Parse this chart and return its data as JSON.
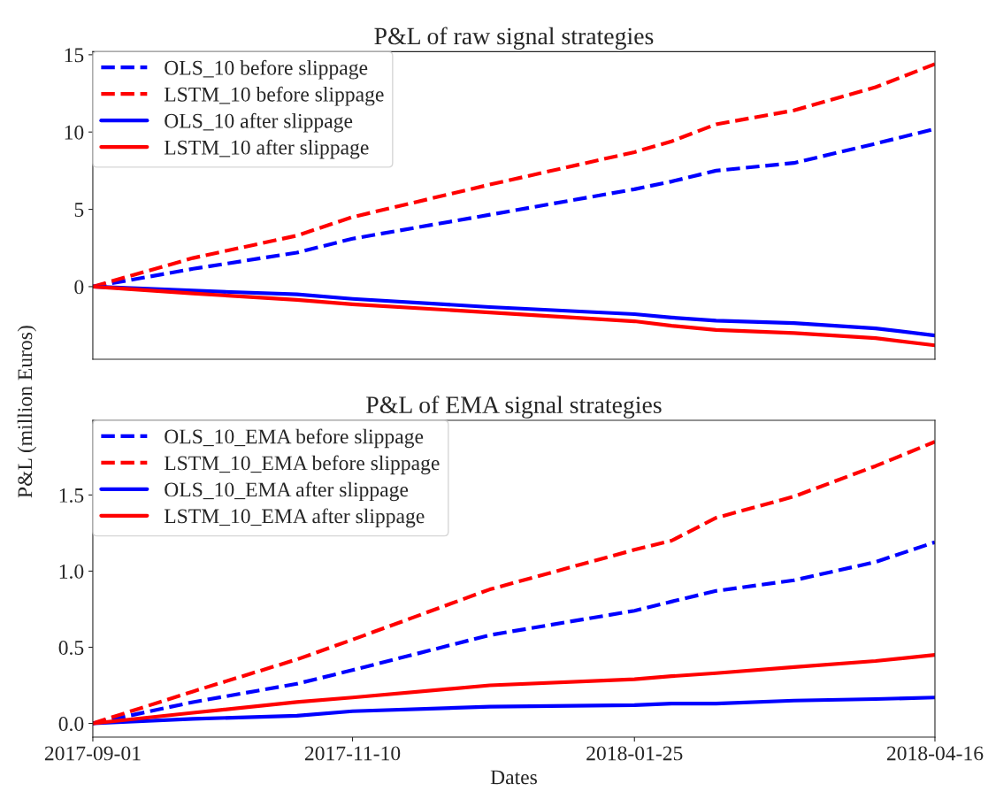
{
  "chart_data": [
    {
      "type": "line",
      "title": "P&L of raw signal strategies",
      "ylabel": "P&L (million Euros)",
      "x": [
        "2017-09-01",
        "2017-09-28",
        "2017-10-26",
        "2017-11-10",
        "2017-12-17",
        "2018-01-25",
        "2018-02-04",
        "2018-02-16",
        "2018-03-09",
        "2018-03-31",
        "2018-04-16"
      ],
      "xlim": [
        "2017-09-01",
        "2018-04-16"
      ],
      "ylim": [
        -4.7,
        15.2
      ],
      "yticks": [
        0,
        5,
        10,
        15
      ],
      "tick_labels": "y",
      "legend": "top left",
      "grid": false,
      "series": [
        {
          "name": "OLS_10 before slippage",
          "color": "#0000ff",
          "line_style": "dashed",
          "values": [
            0,
            1.15,
            2.2,
            3.1,
            4.65,
            6.3,
            6.8,
            7.5,
            8.0,
            9.25,
            10.2
          ]
        },
        {
          "name": "LSTM_10 before slippage",
          "color": "#ff0000",
          "line_style": "dashed",
          "values": [
            0,
            1.85,
            3.3,
            4.5,
            6.6,
            8.7,
            9.4,
            10.5,
            11.4,
            12.9,
            14.4
          ]
        },
        {
          "name": "OLS_10 after slippage",
          "color": "#0000ff",
          "line_style": "solid",
          "values": [
            0,
            -0.26,
            -0.5,
            -0.79,
            -1.32,
            -1.78,
            -2.0,
            -2.2,
            -2.36,
            -2.7,
            -3.16
          ]
        },
        {
          "name": "LSTM_10 after slippage",
          "color": "#ff0000",
          "line_style": "solid",
          "values": [
            0,
            -0.44,
            -0.86,
            -1.14,
            -1.67,
            -2.24,
            -2.53,
            -2.8,
            -3.0,
            -3.33,
            -3.8
          ]
        }
      ]
    },
    {
      "type": "line",
      "title": "P&L of EMA signal strategies",
      "xlabel": "Dates",
      "x": [
        "2017-09-01",
        "2017-09-28",
        "2017-10-26",
        "2017-11-10",
        "2017-12-17",
        "2018-01-25",
        "2018-02-04",
        "2018-02-16",
        "2018-03-09",
        "2018-03-31",
        "2018-04-16"
      ],
      "xlim": [
        "2017-09-01",
        "2018-04-16"
      ],
      "xticks": [
        "2017-09-01",
        "2017-11-10",
        "2018-01-25",
        "2018-04-16"
      ],
      "ylim": [
        -0.09,
        1.99
      ],
      "yticks": [
        {
          "value": 0,
          "label": "0.0"
        },
        0.5,
        {
          "value": 1,
          "label": "1.0"
        },
        1.5
      ],
      "legend": "top left",
      "grid": false,
      "series": [
        {
          "name": "OLS_10_EMA before slippage",
          "color": "#0000ff",
          "line_style": "dashed",
          "values": [
            0,
            0.14,
            0.26,
            0.35,
            0.58,
            0.74,
            0.8,
            0.87,
            0.94,
            1.06,
            1.19
          ]
        },
        {
          "name": "LSTM_10_EMA before slippage",
          "color": "#ff0000",
          "line_style": "dashed",
          "values": [
            0,
            0.21,
            0.42,
            0.55,
            0.88,
            1.14,
            1.2,
            1.35,
            1.49,
            1.69,
            1.85
          ]
        },
        {
          "name": "OLS_10_EMA after slippage",
          "color": "#0000ff",
          "line_style": "solid",
          "values": [
            0,
            0.03,
            0.05,
            0.08,
            0.11,
            0.12,
            0.13,
            0.13,
            0.15,
            0.16,
            0.17
          ]
        },
        {
          "name": "LSTM_10_EMA after slippage",
          "color": "#ff0000",
          "line_style": "solid",
          "values": [
            0,
            0.07,
            0.14,
            0.17,
            0.25,
            0.29,
            0.31,
            0.33,
            0.37,
            0.41,
            0.45
          ]
        }
      ]
    }
  ]
}
